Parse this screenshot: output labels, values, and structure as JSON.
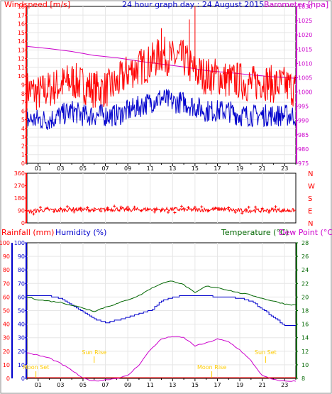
{
  "colors": {
    "red": "#ff0000",
    "blue": "#0000cc",
    "magenta": "#cc00cc",
    "green": "#006600",
    "frame": "#000000",
    "grid": "#dddddd",
    "yellow": "#ffcc00"
  },
  "top_panel": {
    "title": "24 hour graph day : 24 August 2015",
    "left_label": "Windspeed [m/s]",
    "right_label": "Barometer [hpa]"
  },
  "mid_panel": {
    "dir_letters": [
      "N",
      "W",
      "S",
      "E",
      "N"
    ]
  },
  "bottom_panel": {
    "rainfall_label": "Rainfall (mm)",
    "humidity_label": "Humidity (%)",
    "temperature_label": "Temperature (°C)",
    "dewpoint_label": "Dew Point (°C)",
    "annotations": [
      {
        "text": "Sun Rise",
        "hour": 6.0
      },
      {
        "text": "Sun Set",
        "hour": 21.3
      },
      {
        "text": "Moon Set",
        "hour": 0.8
      },
      {
        "text": "Moon Rise",
        "hour": 16.5
      }
    ]
  },
  "chart_data": [
    {
      "type": "line",
      "title": "24 hour graph day : 24 August 2015",
      "xlabel": "",
      "ylabel": "Windspeed [m/s]",
      "y2label": "Barometer [hpa]",
      "x_ticks": [
        "01",
        "03",
        "05",
        "07",
        "09",
        "11",
        "13",
        "15",
        "17",
        "19",
        "21",
        "23"
      ],
      "ylim": [
        0,
        18
      ],
      "yticks": [
        0,
        1,
        2,
        3,
        4,
        5,
        6,
        7,
        8,
        9,
        10,
        11,
        12,
        13,
        14,
        15,
        16,
        17,
        18
      ],
      "y2lim": [
        975,
        1030
      ],
      "y2ticks": [
        975,
        980,
        985,
        990,
        995,
        1000,
        1005,
        1010,
        1015,
        1020,
        1025,
        1030
      ],
      "grid": true,
      "series": [
        {
          "name": "Windspeed [m/s]",
          "axis": "left",
          "color": "#ff0000",
          "x": [
            0,
            1,
            2,
            3,
            4,
            5,
            6,
            7,
            8,
            9,
            10,
            11,
            12,
            13,
            14,
            15,
            16,
            17,
            18,
            19,
            20,
            21,
            22,
            23,
            24
          ],
          "values": [
            8.5,
            8.0,
            8.5,
            9.0,
            9.5,
            9.0,
            8.5,
            8.5,
            9.0,
            10.5,
            11.0,
            11.5,
            12.5,
            12.0,
            12.0,
            10.5,
            10.0,
            10.0,
            9.5,
            9.5,
            9.0,
            9.5,
            9.0,
            9.0,
            8.5
          ],
          "gusts": [
            [
              15.0,
              18.0
            ],
            [
              12.0,
              15.5
            ],
            [
              14.5,
              16.5
            ]
          ]
        },
        {
          "name": "Average windspeed",
          "axis": "left",
          "color": "#0000cc",
          "x": [
            0,
            1,
            2,
            3,
            4,
            5,
            6,
            7,
            8,
            9,
            10,
            11,
            12,
            13,
            14,
            15,
            16,
            17,
            18,
            19,
            20,
            21,
            22,
            23,
            24
          ],
          "values": [
            5.0,
            5.0,
            5.0,
            5.5,
            6.0,
            5.5,
            5.5,
            5.5,
            5.5,
            6.0,
            6.5,
            7.0,
            7.5,
            7.0,
            7.0,
            6.5,
            6.0,
            6.0,
            6.0,
            5.5,
            5.5,
            5.5,
            5.5,
            5.5,
            5.5
          ]
        },
        {
          "name": "Barometer [hpa]",
          "axis": "right",
          "color": "#cc00cc",
          "x": [
            0,
            2,
            4,
            6,
            8,
            10,
            12,
            14,
            16,
            18,
            20,
            22,
            24
          ],
          "values": [
            1016,
            1015.2,
            1014.2,
            1012.8,
            1012.0,
            1010.8,
            1009.8,
            1008.8,
            1007.5,
            1006.8,
            1006.0,
            1005.3,
            1004.8
          ]
        }
      ]
    },
    {
      "type": "scatter",
      "title": "",
      "ylabel": "Wind direction",
      "ylim": [
        0,
        360
      ],
      "yticks": [
        0,
        90,
        180,
        270,
        360
      ],
      "grid": true,
      "series": [
        {
          "name": "",
          "color": "#ff0000",
          "x": [
            0,
            1,
            2,
            3,
            4,
            5,
            6,
            7,
            8,
            9,
            10,
            11,
            12,
            13,
            14,
            15,
            16,
            17,
            18,
            19,
            20,
            21,
            22,
            23,
            24
          ],
          "values": [
            80,
            90,
            95,
            90,
            100,
            95,
            95,
            95,
            100,
            95,
            95,
            100,
            95,
            100,
            95,
            95,
            95,
            100,
            95,
            90,
            90,
            90,
            95,
            90,
            90
          ]
        }
      ]
    },
    {
      "type": "line",
      "title": "",
      "ylabel": "Rainfall (mm)",
      "y2label": "Temperature (°C)",
      "x_ticks": [
        "01",
        "03",
        "05",
        "07",
        "09",
        "11",
        "13",
        "15",
        "17",
        "19",
        "21",
        "23"
      ],
      "ylim": [
        0,
        100
      ],
      "yticks": [
        0,
        10,
        20,
        30,
        40,
        50,
        60,
        70,
        80,
        90,
        100
      ],
      "y2lim": [
        8,
        28
      ],
      "y2ticks": [
        8,
        10,
        12,
        14,
        16,
        18,
        20,
        22,
        24,
        26,
        28
      ],
      "grid": true,
      "series": [
        {
          "name": "Humidity (%)",
          "axis": "left",
          "color": "#0000cc",
          "x": [
            0,
            1,
            2,
            3,
            4,
            5,
            6,
            7,
            8,
            9,
            10,
            11,
            12,
            13,
            14,
            15,
            16,
            17,
            18,
            19,
            20,
            21,
            22,
            23,
            24
          ],
          "values": [
            60.5,
            60.5,
            60.5,
            59,
            54,
            49,
            44,
            41,
            43,
            45,
            48,
            50,
            57,
            60,
            61,
            61,
            61,
            60,
            60,
            59,
            57,
            51,
            45,
            39,
            39
          ]
        },
        {
          "name": "Temperature (°C)",
          "axis": "right",
          "color": "#006600",
          "x": [
            0,
            1,
            2,
            3,
            4,
            5,
            6,
            7,
            8,
            9,
            10,
            11,
            12,
            13,
            14,
            15,
            16,
            17,
            18,
            19,
            20,
            21,
            22,
            23,
            24
          ],
          "values": [
            20.0,
            19.6,
            19.4,
            19.2,
            18.8,
            18.4,
            17.9,
            18.5,
            19.0,
            19.6,
            20.2,
            21.2,
            22.0,
            22.4,
            21.8,
            20.6,
            21.6,
            21.4,
            21.0,
            20.6,
            20.3,
            19.8,
            19.4,
            19.0,
            18.8
          ]
        },
        {
          "name": "Dew Point (°C)",
          "axis": "right",
          "color": "#cc00cc",
          "x": [
            0,
            1,
            2,
            3,
            4,
            5,
            6,
            7,
            8,
            9,
            10,
            11,
            12,
            13,
            14,
            15,
            16,
            17,
            18,
            19,
            20,
            21,
            22,
            23,
            24
          ],
          "values": [
            11.8,
            11.4,
            11.0,
            10.2,
            9.2,
            8.0,
            7.6,
            7.8,
            8.0,
            8.4,
            10.0,
            12.2,
            13.8,
            14.2,
            14.0,
            12.8,
            13.2,
            13.8,
            13.4,
            12.2,
            10.6,
            8.4,
            7.8,
            7.6,
            7.6
          ]
        }
      ]
    }
  ]
}
